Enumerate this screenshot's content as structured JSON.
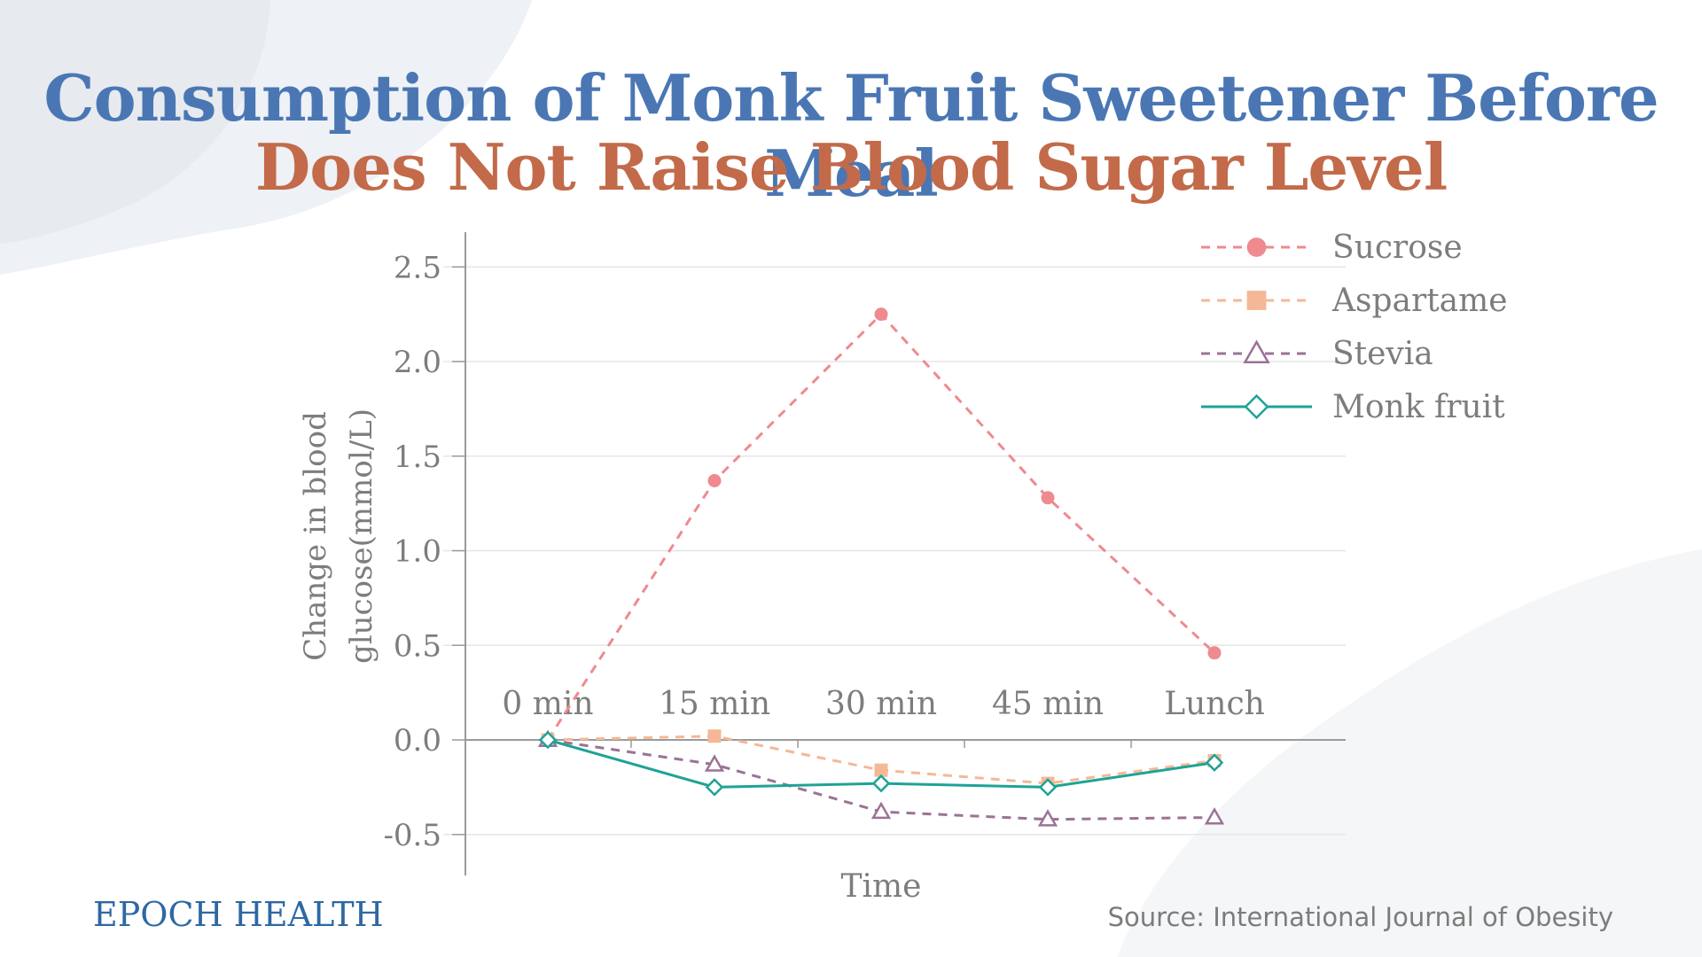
{
  "title": {
    "line1": "Consumption of Monk Fruit Sweetener Before Meal",
    "line2": "Does Not Raise Blood Sugar Level"
  },
  "colors": {
    "title_line1": "#4a77b4",
    "title_line2": "#c26a49",
    "brand": "#2e68a3",
    "axis": "#9a9a9a",
    "grid": "#e6e6e6",
    "text": "#7d7d7d",
    "background_shape": "#eef1f5"
  },
  "chart_data": {
    "type": "line",
    "categories": [
      "0 min",
      "15 min",
      "30 min",
      "45 min",
      "Lunch"
    ],
    "xlabel": "Time",
    "ylabel": "Change in blood glucose(mmol/L)",
    "ylim": [
      -0.7,
      2.7
    ],
    "yticks": [
      -0.5,
      0.0,
      0.5,
      1.0,
      1.5,
      2.0,
      2.5
    ],
    "ytick_labels": [
      "-0.5",
      "0.0",
      "0.5",
      "1.0",
      "1.5",
      "2.0",
      "2.5"
    ],
    "grid": true,
    "legend_position": "top-right",
    "series": [
      {
        "name": "Sucrose",
        "values": [
          0.0,
          1.37,
          2.25,
          1.28,
          0.46
        ],
        "color": "#ee8a90",
        "marker": "circle",
        "line": "dashed"
      },
      {
        "name": "Aspartame",
        "values": [
          0.0,
          0.02,
          -0.16,
          -0.23,
          -0.11
        ],
        "color": "#f4b896",
        "marker": "square",
        "line": "dashed"
      },
      {
        "name": "Stevia",
        "values": [
          0.0,
          -0.13,
          -0.38,
          -0.42,
          -0.41
        ],
        "color": "#9a7394",
        "marker": "triangle-open",
        "line": "dashed"
      },
      {
        "name": "Monk fruit",
        "values": [
          0.0,
          -0.25,
          -0.23,
          -0.25,
          -0.12
        ],
        "color": "#1ea395",
        "marker": "diamond-open",
        "line": "solid"
      }
    ]
  },
  "footer": {
    "brand": "EPOCH HEALTH",
    "source": "Source: International Journal of Obesity"
  }
}
